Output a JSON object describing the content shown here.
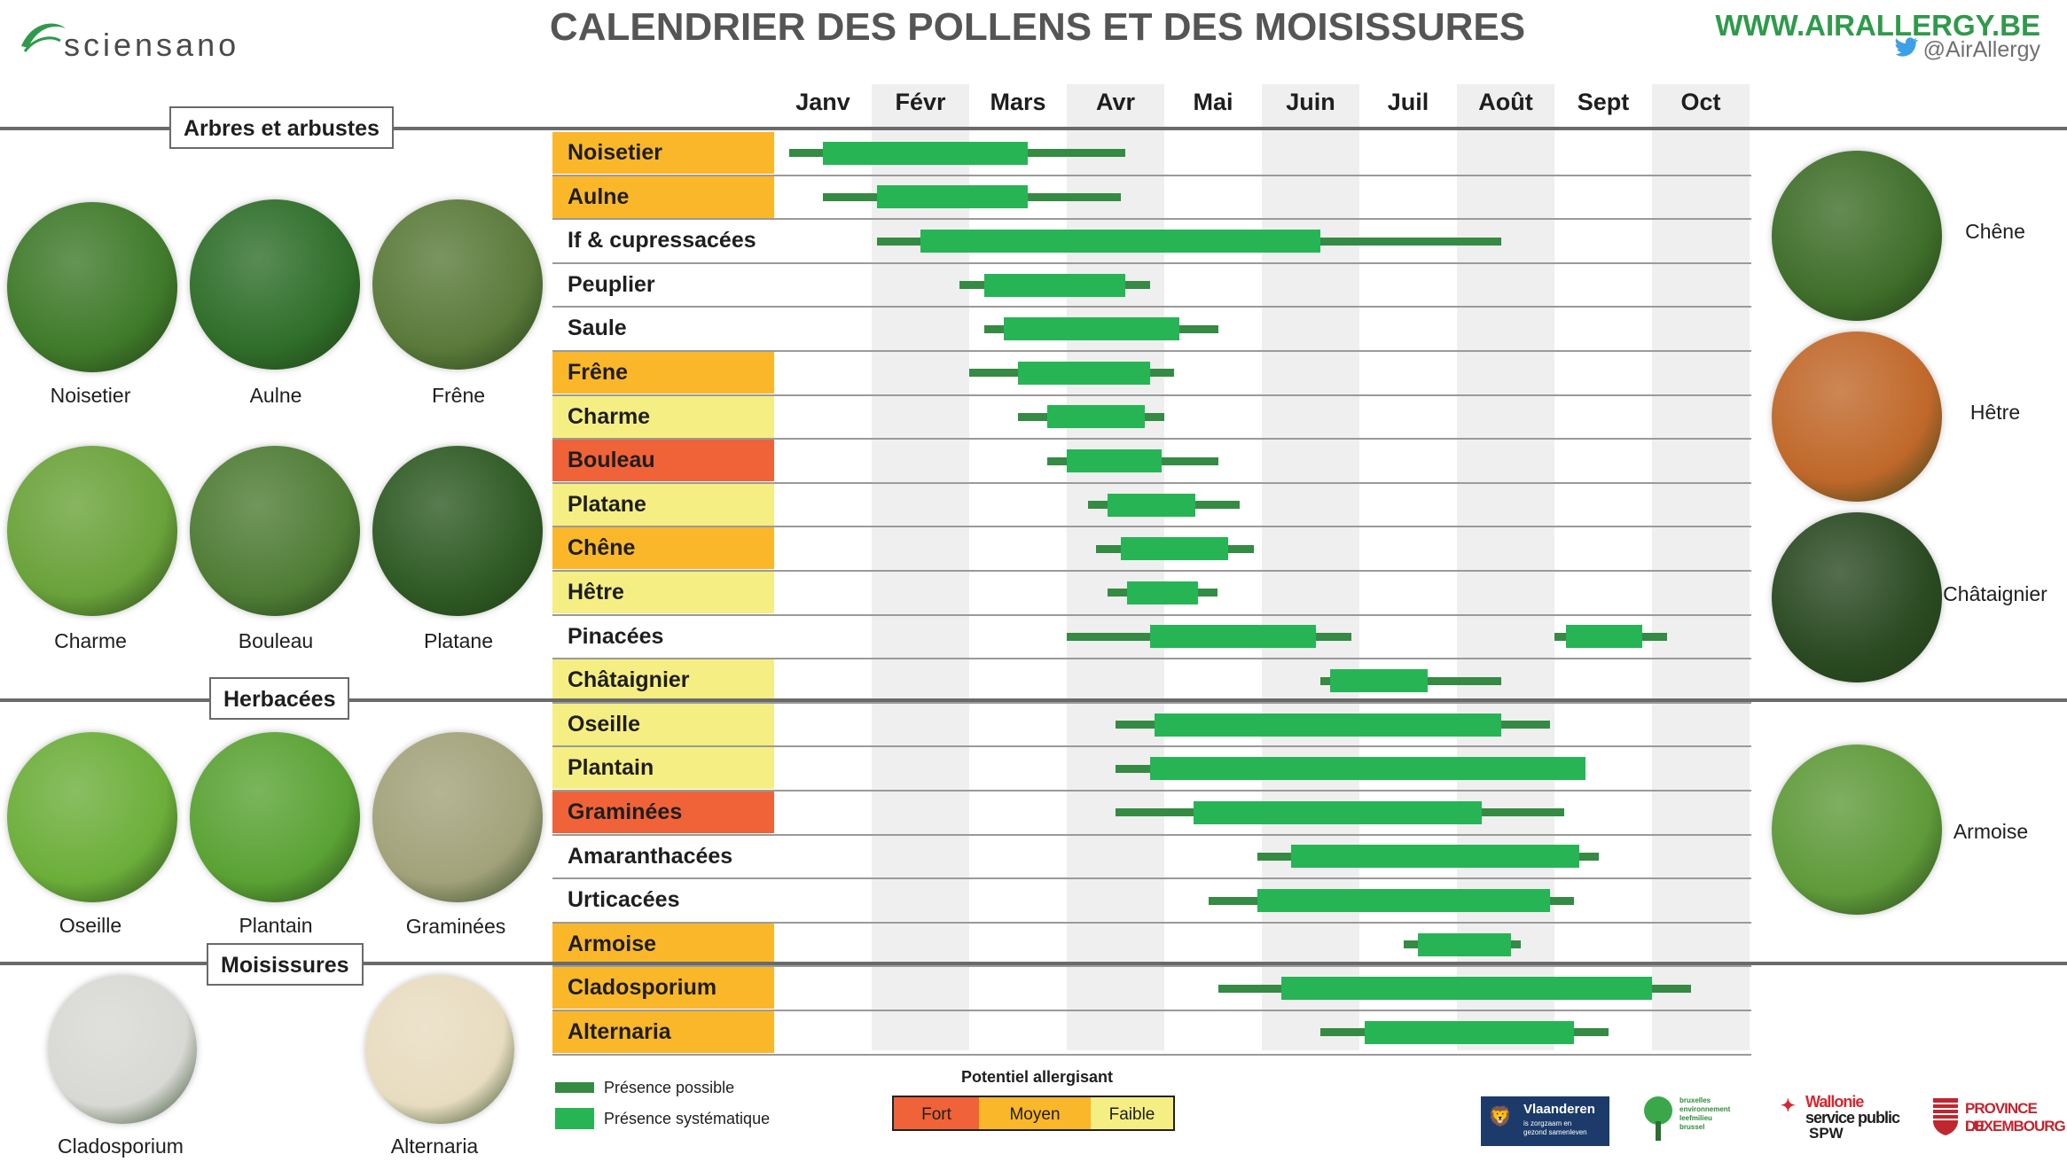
{
  "brand": {
    "name": "sciensano",
    "website": "WWW.AIRALLERGY.BE",
    "twitter": "@AirAllergy"
  },
  "title": "CALENDRIER DES POLLENS ET DES MOISISSURES",
  "months": [
    "Janv",
    "Févr",
    "Mars",
    "Avr",
    "Mai",
    "Juin",
    "Juil",
    "Août",
    "Sept",
    "Oct"
  ],
  "sections": {
    "trees": "Arbres et arbustes",
    "herbs": "Herbacées",
    "molds": "Moisissures"
  },
  "colors": {
    "fort": "#f06238",
    "moyen": "#fbb72a",
    "faible": "#f5ee82",
    "none": "#ffffff",
    "possible": "#358a44",
    "systematique": "#27b455"
  },
  "rows": [
    {
      "name": "Noisetier",
      "level": "moyen",
      "possible": [
        [
          0.15,
          3.6
        ]
      ],
      "syst": [
        [
          0.5,
          2.6
        ]
      ]
    },
    {
      "name": "Aulne",
      "level": "moyen",
      "possible": [
        [
          0.5,
          3.55
        ]
      ],
      "syst": [
        [
          1.05,
          2.6
        ]
      ]
    },
    {
      "name": "If & cupressacées",
      "level": "none",
      "possible": [
        [
          1.05,
          7.45
        ]
      ],
      "syst": [
        [
          1.5,
          5.6
        ]
      ]
    },
    {
      "name": "Peuplier",
      "level": "none",
      "possible": [
        [
          1.9,
          3.85
        ]
      ],
      "syst": [
        [
          2.15,
          3.6
        ]
      ]
    },
    {
      "name": "Saule",
      "level": "none",
      "possible": [
        [
          2.15,
          4.55
        ]
      ],
      "syst": [
        [
          2.35,
          4.15
        ]
      ]
    },
    {
      "name": "Frêne",
      "level": "moyen",
      "possible": [
        [
          2.0,
          4.1
        ]
      ],
      "syst": [
        [
          2.5,
          3.85
        ]
      ]
    },
    {
      "name": "Charme",
      "level": "faible",
      "possible": [
        [
          2.5,
          4.0
        ]
      ],
      "syst": [
        [
          2.8,
          3.8
        ]
      ]
    },
    {
      "name": "Bouleau",
      "level": "fort",
      "possible": [
        [
          2.8,
          4.55
        ]
      ],
      "syst": [
        [
          3.0,
          3.97
        ]
      ]
    },
    {
      "name": "Platane",
      "level": "faible",
      "possible": [
        [
          3.22,
          4.77
        ]
      ],
      "syst": [
        [
          3.42,
          4.32
        ]
      ]
    },
    {
      "name": "Chêne",
      "level": "moyen",
      "possible": [
        [
          3.3,
          4.92
        ]
      ],
      "syst": [
        [
          3.55,
          4.65
        ]
      ]
    },
    {
      "name": "Hêtre",
      "level": "faible",
      "possible": [
        [
          3.42,
          4.55
        ]
      ],
      "syst": [
        [
          3.62,
          4.35
        ]
      ]
    },
    {
      "name": "Pinacées",
      "level": "none",
      "possible": [
        [
          3.0,
          5.92
        ],
        [
          8.0,
          9.15
        ]
      ],
      "syst": [
        [
          3.85,
          5.55
        ],
        [
          8.12,
          8.9
        ]
      ]
    },
    {
      "name": "Châtaignier",
      "level": "faible",
      "possible": [
        [
          5.6,
          7.45
        ]
      ],
      "syst": [
        [
          5.7,
          6.7
        ]
      ]
    },
    {
      "name": "Oseille",
      "level": "faible",
      "possible": [
        [
          3.5,
          7.95
        ]
      ],
      "syst": [
        [
          3.9,
          7.45
        ]
      ]
    },
    {
      "name": "Plantain",
      "level": "faible",
      "possible": [
        [
          3.5,
          8.2
        ]
      ],
      "syst": [
        [
          3.85,
          8.32
        ]
      ]
    },
    {
      "name": "Graminées",
      "level": "fort",
      "possible": [
        [
          3.5,
          8.1
        ]
      ],
      "syst": [
        [
          4.3,
          7.25
        ]
      ]
    },
    {
      "name": "Amaranthacées",
      "level": "none",
      "possible": [
        [
          4.95,
          8.45
        ]
      ],
      "syst": [
        [
          5.3,
          8.25
        ]
      ]
    },
    {
      "name": "Urticacées",
      "level": "none",
      "possible": [
        [
          4.45,
          8.2
        ]
      ],
      "syst": [
        [
          4.95,
          7.95
        ]
      ]
    },
    {
      "name": "Armoise",
      "level": "moyen",
      "possible": [
        [
          6.45,
          7.65
        ]
      ],
      "syst": [
        [
          6.6,
          7.55
        ]
      ]
    },
    {
      "name": "Cladosporium",
      "level": "moyen",
      "possible": [
        [
          4.55,
          9.4
        ]
      ],
      "syst": [
        [
          5.2,
          9.0
        ]
      ]
    },
    {
      "name": "Alternaria",
      "level": "moyen",
      "possible": [
        [
          5.6,
          8.55
        ]
      ],
      "syst": [
        [
          6.05,
          8.2
        ]
      ]
    }
  ],
  "left_photos": [
    {
      "name": "Noisetier",
      "color": "#3f7a2a"
    },
    {
      "name": "Aulne",
      "color": "#2f6e2a"
    },
    {
      "name": "Frêne",
      "color": "#5a7a3a"
    },
    {
      "name": "Charme",
      "color": "#6aa23a"
    },
    {
      "name": "Bouleau",
      "color": "#4f7c35"
    },
    {
      "name": "Platane",
      "color": "#2f5a24"
    },
    {
      "name": "Oseille",
      "color": "#6cae3a"
    },
    {
      "name": "Plantain",
      "color": "#5aa234"
    },
    {
      "name": "Graminées",
      "color": "#a2a27a"
    },
    {
      "name": "Cladosporium",
      "color": "#d8d8d4"
    },
    {
      "name": "Alternaria",
      "color": "#e8dcc0"
    }
  ],
  "right_photos": [
    {
      "name": "Chêne",
      "color": "#3f6e2a"
    },
    {
      "name": "Hêtre",
      "color": "#c0682a"
    },
    {
      "name": "Châtaignier",
      "color": "#2a4a22"
    },
    {
      "name": "Armoise",
      "color": "#5f9a3a"
    }
  ],
  "legend": {
    "possible": "Présence possible",
    "systematique": "Présence systématique"
  },
  "potential": {
    "title": "Potentiel allergisant",
    "fort": "Fort",
    "moyen": "Moyen",
    "faible": "Faible"
  },
  "sponsors": {
    "vlaanderen": "Vlaanderen",
    "vlaanderen_sub": [
      "is zorgzaam en",
      "gezond samenleven"
    ],
    "brussels": [
      "bruxelles",
      "environnement",
      "leefmilieu",
      "brussel"
    ],
    "wallonie": [
      "Wallonie",
      "service public",
      "SPW"
    ],
    "luxembourg": [
      "PROVINCE DE",
      "LUXEMBOURG"
    ]
  }
}
